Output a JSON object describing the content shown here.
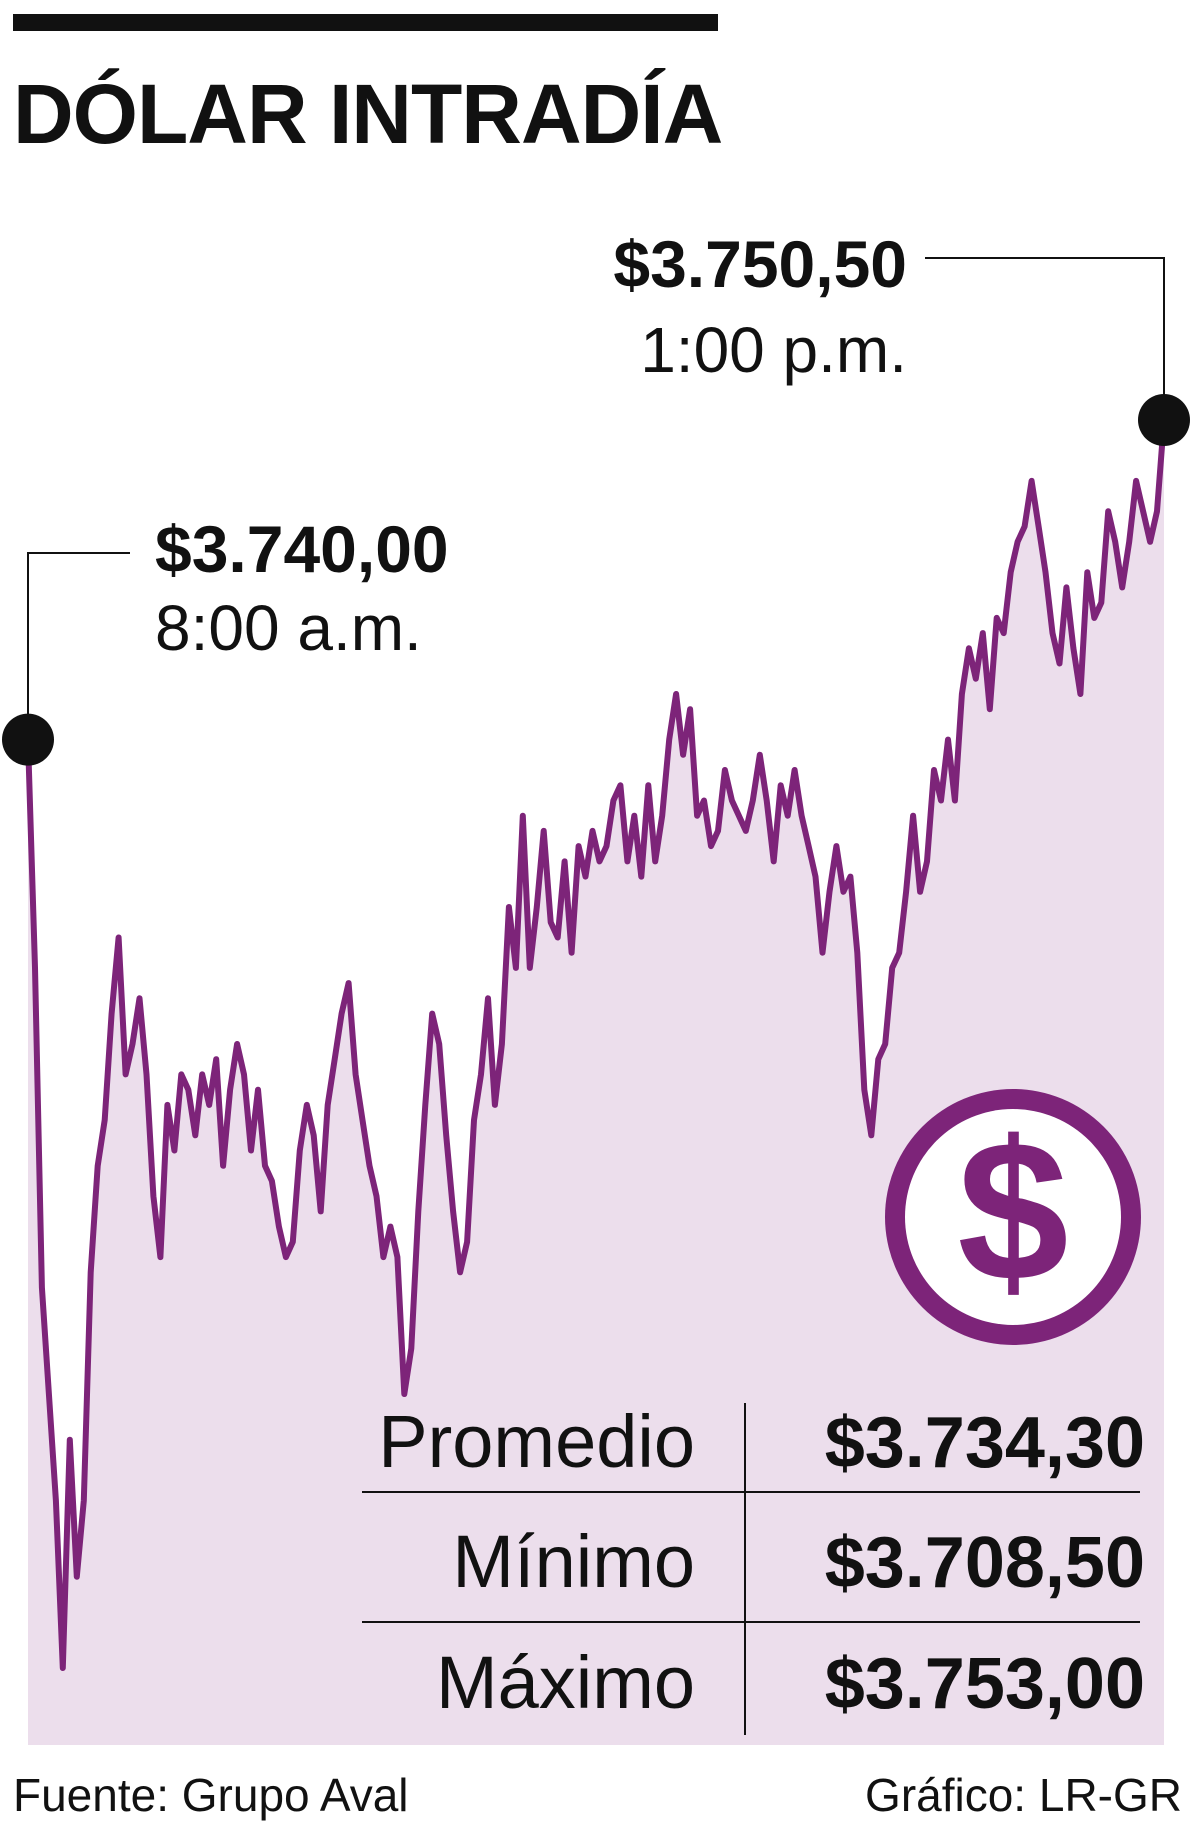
{
  "title": "DÓLAR INTRADÍA",
  "footer": {
    "source": "Fuente: Grupo Aval",
    "credit": "Gráfico: LR-GR"
  },
  "colors": {
    "line": "#7d2479",
    "fill": "#ecdeec",
    "text": "#111111"
  },
  "icon": "dollar-coin-icon",
  "stats": [
    {
      "label": "Promedio",
      "value": "$3.734,30"
    },
    {
      "label": "Mínimo",
      "value": "$3.708,50"
    },
    {
      "label": "Máximo",
      "value": "$3.753,00"
    }
  ],
  "chart_data": {
    "type": "area",
    "title": "DÓLAR INTRADÍA",
    "ylim": [
      3705,
      3755
    ],
    "grid": false,
    "annotations": [
      {
        "value": "$3.740,00",
        "time": "8:00 a.m."
      },
      {
        "value": "$3.750,50",
        "time": "1:00 p.m."
      }
    ],
    "series": [
      {
        "values": [
          3740.0,
          3732.5,
          3722.0,
          3718.5,
          3715.0,
          3709.5,
          3717.0,
          3712.5,
          3715.0,
          3722.5,
          3726.0,
          3727.5,
          3731.0,
          3733.5,
          3729.0,
          3730.0,
          3731.5,
          3729.0,
          3725.0,
          3723.0,
          3728.0,
          3726.5,
          3729.0,
          3728.5,
          3727.0,
          3729.0,
          3728.0,
          3729.5,
          3726.0,
          3728.5,
          3730.0,
          3729.0,
          3726.5,
          3728.5,
          3726.0,
          3725.5,
          3724.0,
          3723.0,
          3723.5,
          3726.5,
          3728.0,
          3727.0,
          3724.5,
          3728.0,
          3729.5,
          3731.0,
          3732.0,
          3729.0,
          3727.5,
          3726.0,
          3725.0,
          3723.0,
          3724.0,
          3723.0,
          3718.5,
          3720.0,
          3724.5,
          3728.0,
          3731.0,
          3730.0,
          3727.0,
          3724.5,
          3722.5,
          3723.5,
          3727.5,
          3729.0,
          3731.5,
          3728.0,
          3730.0,
          3734.5,
          3732.5,
          3737.5,
          3732.5,
          3734.5,
          3737.0,
          3734.0,
          3733.5,
          3736.0,
          3733.0,
          3736.5,
          3735.5,
          3737.0,
          3736.0,
          3736.5,
          3738.0,
          3738.5,
          3736.0,
          3737.5,
          3735.5,
          3738.5,
          3736.0,
          3737.5,
          3740.0,
          3741.5,
          3739.5,
          3741.0,
          3737.5,
          3738.0,
          3736.5,
          3737.0,
          3739.0,
          3738.0,
          3737.5,
          3737.0,
          3738.0,
          3739.5,
          3738.0,
          3736.0,
          3738.5,
          3737.5,
          3739.0,
          3737.5,
          3736.5,
          3735.5,
          3733.0,
          3735.0,
          3736.5,
          3735.0,
          3735.5,
          3733.0,
          3728.5,
          3727.0,
          3729.5,
          3730.0,
          3732.5,
          3733.0,
          3735.0,
          3737.5,
          3735.0,
          3736.0,
          3739.0,
          3738.0,
          3740.0,
          3738.0,
          3741.5,
          3743.0,
          3742.0,
          3743.5,
          3741.0,
          3744.0,
          3743.5,
          3745.5,
          3746.5,
          3747.0,
          3748.5,
          3747.0,
          3745.5,
          3743.5,
          3742.5,
          3745.0,
          3743.0,
          3741.5,
          3745.5,
          3744.0,
          3744.5,
          3747.5,
          3746.5,
          3745.0,
          3746.5,
          3748.5,
          3747.5,
          3746.5,
          3747.5,
          3750.5
        ]
      }
    ]
  }
}
